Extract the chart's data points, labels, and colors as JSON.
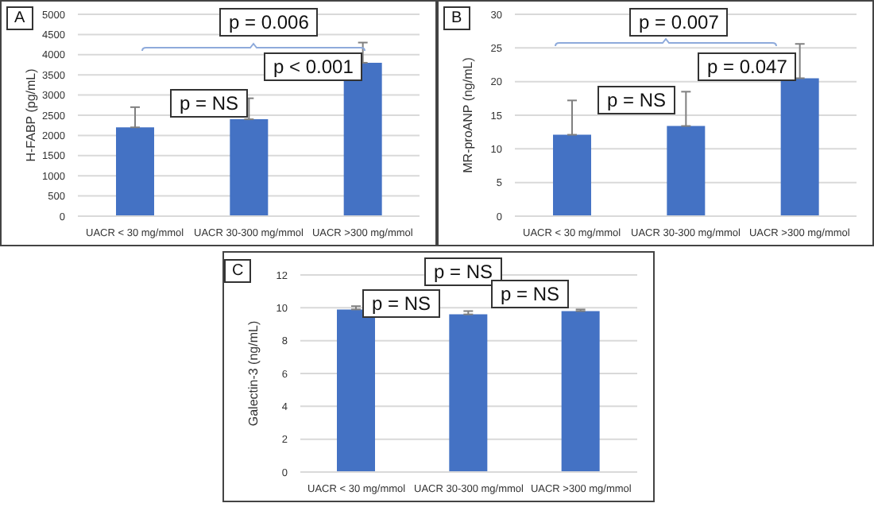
{
  "chart_data": [
    {
      "type": "bar",
      "ylabel": "H-FABP (pg/mL)",
      "categories": [
        "UACR < 30 mg/mmol",
        "UACR 30-300 mg/mmol",
        "UACR >300 mg/mmol"
      ],
      "values": [
        2200,
        2400,
        3800
      ],
      "errors": [
        [
          2200,
          2700
        ],
        [
          2400,
          2920
        ],
        [
          3800,
          4300
        ]
      ],
      "color": "#4472c4",
      "ylim": [
        0,
        5000
      ],
      "yticks": [
        0,
        500,
        1000,
        1500,
        2000,
        2500,
        3000,
        3500,
        4000,
        4500,
        5000
      ],
      "grid": "y",
      "annotations": [
        "A",
        "p = 0.006",
        "p < 0.001",
        "p = NS"
      ]
    },
    {
      "type": "bar",
      "ylabel": "MR-proANP (ng/mL)",
      "categories": [
        "UACR < 30 mg/mmol",
        "UACR 30-300 mg/mmol",
        "UACR >300 mg/mmol"
      ],
      "values": [
        12.1,
        13.4,
        20.5
      ],
      "errors": [
        [
          12.1,
          17.2
        ],
        [
          13.4,
          18.5
        ],
        [
          20.5,
          25.6
        ]
      ],
      "color": "#4472c4",
      "ylim": [
        0,
        30
      ],
      "yticks": [
        0,
        5,
        10,
        15,
        20,
        25,
        30
      ],
      "grid": "y",
      "annotations": [
        "B",
        "p = 0.007",
        "p = 0.047",
        "p = NS"
      ]
    },
    {
      "type": "bar",
      "ylabel": "Galectin-3 (ng/mL)",
      "categories": [
        "UACR < 30 mg/mmol",
        "UACR 30-300 mg/mmol",
        "UACR >300 mg/mmol"
      ],
      "values": [
        9.9,
        9.6,
        9.8
      ],
      "errors": [
        [
          9.9,
          10.1
        ],
        [
          9.6,
          9.8
        ],
        [
          9.8,
          9.9
        ]
      ],
      "color": "#4472c4",
      "ylim": [
        0,
        12
      ],
      "yticks": [
        0,
        2,
        4,
        6,
        8,
        10,
        12
      ],
      "grid": "y",
      "annotations": [
        "C",
        "p = NS",
        "p = NS",
        "p = NS"
      ]
    }
  ]
}
